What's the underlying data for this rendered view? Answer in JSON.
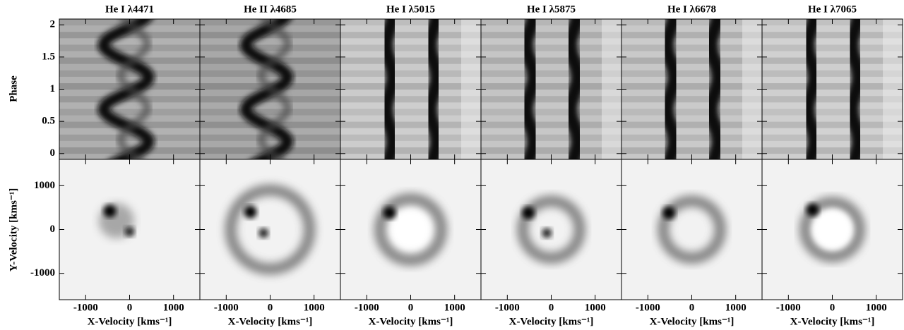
{
  "chart_data": {
    "type": "trailed-spectra-doppler-maps",
    "titles": [
      "He I λ4471",
      "He II λ4685",
      "He I λ5015",
      "He I λ5875",
      "He I λ6678",
      "He I λ7065"
    ],
    "top_ylabel": "Phase",
    "top_ylim": [
      -0.09,
      2.09
    ],
    "top_yticks": [
      0,
      0.5,
      1,
      1.5,
      2
    ],
    "bottom_ylabel": "Y-Velocity [kms⁻¹]",
    "bottom_ylim": [
      -1600,
      1600
    ],
    "bottom_yticks": [
      -1000,
      0,
      1000
    ],
    "xlabel": "X-Velocity [kms⁻¹]",
    "xlim": [
      -1600,
      1600
    ],
    "xticks": [
      -1000,
      0,
      1000
    ]
  }
}
